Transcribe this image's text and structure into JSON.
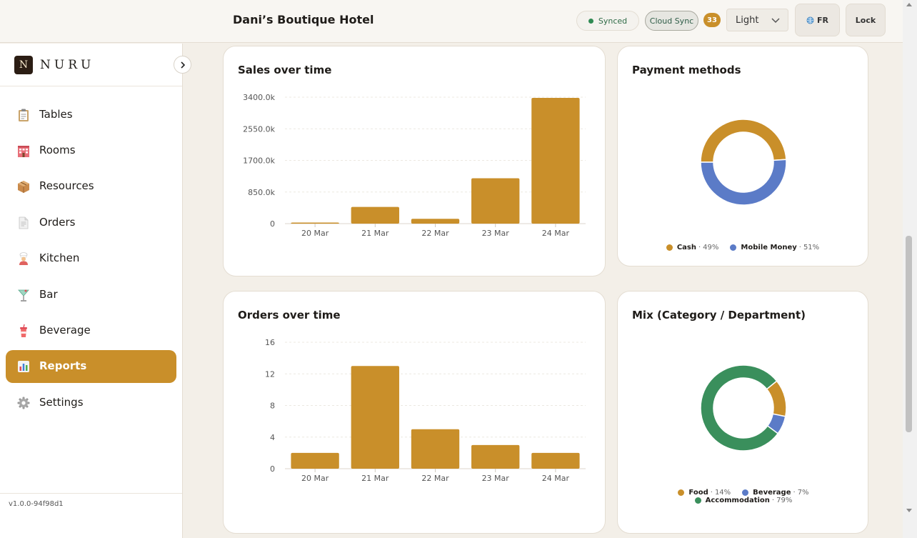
{
  "header": {
    "hotel_name": "Dani’s Boutique Hotel",
    "synced_label": "Synced",
    "cloud_sync_label": "Cloud Sync",
    "badge_count": "33",
    "theme_value": "Light",
    "language_label": "FR",
    "lock_label": "Lock"
  },
  "brand": {
    "mark": "N",
    "name": "NURU"
  },
  "sidebar": {
    "items": [
      {
        "label": "Tables",
        "icon": "clipboard-icon"
      },
      {
        "label": "Rooms",
        "icon": "hotel-icon"
      },
      {
        "label": "Resources",
        "icon": "box-icon"
      },
      {
        "label": "Orders",
        "icon": "document-icon"
      },
      {
        "label": "Kitchen",
        "icon": "chef-icon"
      },
      {
        "label": "Bar",
        "icon": "cocktail-icon"
      },
      {
        "label": "Beverage",
        "icon": "cup-icon"
      },
      {
        "label": "Reports",
        "icon": "bar-chart-icon",
        "active": true
      },
      {
        "label": "Settings",
        "icon": "gear-icon"
      }
    ],
    "version": "v1.0.0-94f98d1"
  },
  "colors": {
    "accent": "#c98f2a",
    "blue": "#5b7bc7",
    "green": "#3a8f5c",
    "synced_dot": "#2f8a53"
  },
  "chart_data": [
    {
      "type": "bar",
      "title": "Sales over time",
      "categories": [
        "20 Mar",
        "21 Mar",
        "22 Mar",
        "23 Mar",
        "24 Mar"
      ],
      "values": [
        25,
        450,
        130,
        1220,
        3380
      ],
      "yticks": [
        "0",
        "850.0k",
        "1700.0k",
        "2550.0k",
        "3400.0k"
      ],
      "ylim": [
        0,
        3400
      ],
      "grid": true
    },
    {
      "type": "pie",
      "title": "Payment methods",
      "slices": [
        {
          "name": "Cash",
          "value": 49,
          "label": "49%"
        },
        {
          "name": "Mobile Money",
          "value": 51,
          "label": "51%"
        }
      ],
      "legend": "bottom"
    },
    {
      "type": "bar",
      "title": "Orders over time",
      "categories": [
        "20 Mar",
        "21 Mar",
        "22 Mar",
        "23 Mar",
        "24 Mar"
      ],
      "values": [
        2,
        13,
        5,
        3,
        2
      ],
      "yticks": [
        "0",
        "4",
        "8",
        "12",
        "16"
      ],
      "ylim": [
        0,
        16
      ],
      "grid": true
    },
    {
      "type": "pie",
      "title": "Mix (Category / Department)",
      "slices": [
        {
          "name": "Food",
          "value": 14,
          "label": "14%"
        },
        {
          "name": "Beverage",
          "value": 7,
          "label": "7%"
        },
        {
          "name": "Accommodation",
          "value": 79,
          "label": "79%"
        }
      ],
      "legend": "bottom"
    }
  ]
}
